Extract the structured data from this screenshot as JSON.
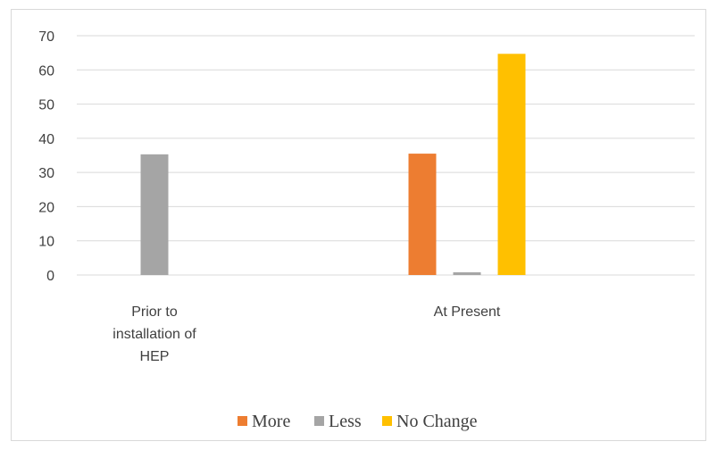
{
  "chart_data": {
    "type": "bar",
    "categories": [
      "Prior to installation of HEP",
      "At Present"
    ],
    "category_label_lines": [
      [
        "Prior to",
        "installation of",
        "HEP"
      ],
      [
        "At Present"
      ]
    ],
    "series": [
      {
        "name": "More",
        "values": [
          0,
          35.5
        ],
        "color": "#ED7D31"
      },
      {
        "name": "Less",
        "values": [
          35.3,
          0.8
        ],
        "color": "#A5A5A5"
      },
      {
        "name": "No Change",
        "values": [
          0,
          64.7
        ],
        "color": "#FFC000"
      }
    ],
    "yticks": [
      "0",
      "10",
      "20",
      "30",
      "40",
      "50",
      "60",
      "70"
    ],
    "ylim": [
      0,
      70
    ],
    "grid": true,
    "legend_position": "bottom",
    "gridline_color": "#d9d9d9",
    "title": "",
    "xlabel": "",
    "ylabel": ""
  }
}
